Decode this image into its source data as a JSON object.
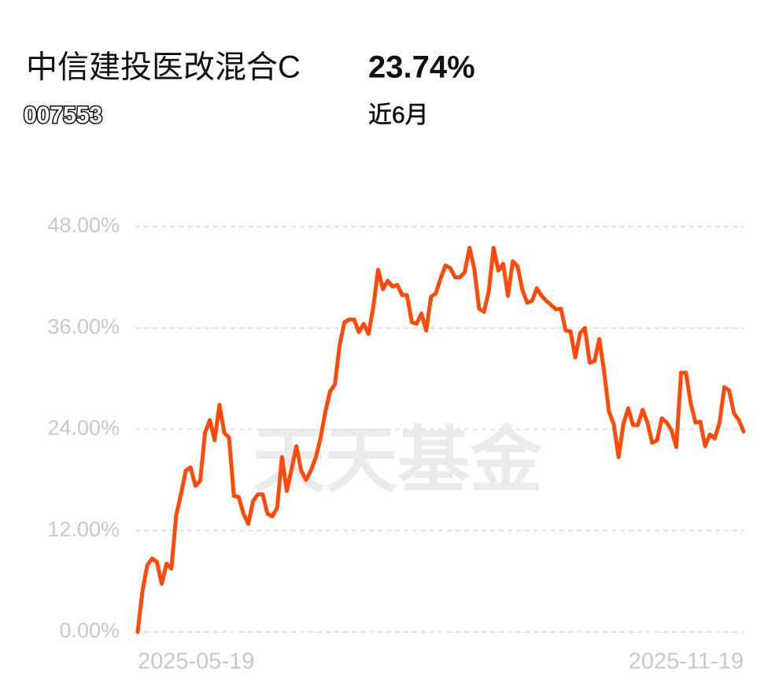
{
  "header": {
    "title": "中信建投医改混合C",
    "code": "007553",
    "return": "23.74%",
    "period": "近6月"
  },
  "chart_data": {
    "type": "line",
    "watermark": "天天基金",
    "categories": [
      "2025-05-19",
      null,
      null,
      null,
      null,
      null,
      null,
      null,
      null,
      null,
      null,
      null,
      null,
      null,
      null,
      null,
      null,
      null,
      null,
      null,
      null,
      null,
      null,
      null,
      null,
      null,
      null,
      null,
      null,
      null,
      null,
      null,
      null,
      null,
      null,
      null,
      null,
      null,
      null,
      null,
      null,
      null,
      null,
      null,
      null,
      null,
      null,
      null,
      null,
      null,
      null,
      null,
      null,
      null,
      null,
      null,
      null,
      null,
      null,
      null,
      null,
      null,
      null,
      null,
      null,
      null,
      null,
      null,
      null,
      null,
      null,
      null,
      null,
      null,
      null,
      null,
      null,
      null,
      null,
      null,
      null,
      null,
      null,
      null,
      null,
      null,
      null,
      null,
      null,
      null,
      null,
      null,
      null,
      null,
      null,
      null,
      null,
      null,
      null,
      null,
      null,
      null,
      null,
      null,
      null,
      null,
      null,
      null,
      null,
      null,
      null,
      null,
      null,
      null,
      null,
      null,
      null,
      null,
      null,
      null,
      null,
      null,
      null,
      null,
      null,
      null,
      "2025-11-19"
    ],
    "series": [
      {
        "color": "#ff4a0a",
        "values": [
          0,
          4.9,
          7.9,
          8.7,
          8.3,
          5.7,
          8.1,
          7.5,
          13.8,
          16.3,
          19.1,
          19.5,
          17.3,
          17.9,
          23.6,
          25.1,
          22.7,
          26.9,
          23.6,
          23.0,
          16.1,
          16.0,
          14.0,
          12.8,
          15.5,
          16.3,
          16.3,
          14.0,
          13.7,
          14.7,
          20.7,
          16.7,
          19.3,
          22.0,
          19.1,
          18.0,
          19.1,
          20.6,
          22.9,
          26.0,
          28.5,
          29.3,
          34.0,
          36.7,
          37.0,
          37.0,
          35.5,
          36.5,
          35.3,
          38.5,
          42.9,
          40.6,
          41.6,
          40.9,
          41.1,
          39.9,
          39.9,
          36.7,
          36.5,
          37.7,
          35.7,
          39.7,
          40.1,
          41.9,
          43.4,
          43.1,
          42.0,
          42.0,
          42.6,
          45.5,
          43.0,
          38.3,
          37.9,
          40.3,
          45.5,
          42.8,
          43.6,
          39.8,
          43.9,
          43.3,
          40.5,
          39.0,
          39.2,
          40.7,
          39.8,
          39.2,
          38.7,
          38.2,
          38.3,
          35.7,
          35.6,
          32.5,
          35.4,
          36.0,
          31.9,
          32.1,
          34.7,
          30.8,
          26.1,
          24.6,
          20.7,
          24.6,
          26.5,
          24.5,
          24.5,
          26.3,
          24.8,
          22.4,
          22.7,
          25.3,
          24.8,
          23.9,
          21.9,
          30.7,
          30.7,
          27.1,
          24.8,
          24.9,
          22.0,
          23.4,
          22.9,
          24.8,
          29.0,
          28.6,
          25.9,
          25.1,
          23.74
        ]
      }
    ],
    "ylim": [
      0,
      48
    ],
    "yticks": [
      {
        "value": 0,
        "label": "0.00%"
      },
      {
        "value": 12,
        "label": "12.00%"
      },
      {
        "value": 24,
        "label": "24.00%"
      },
      {
        "value": 36,
        "label": "36.00%"
      },
      {
        "value": 48,
        "label": "48.00%"
      }
    ],
    "grid": true
  }
}
